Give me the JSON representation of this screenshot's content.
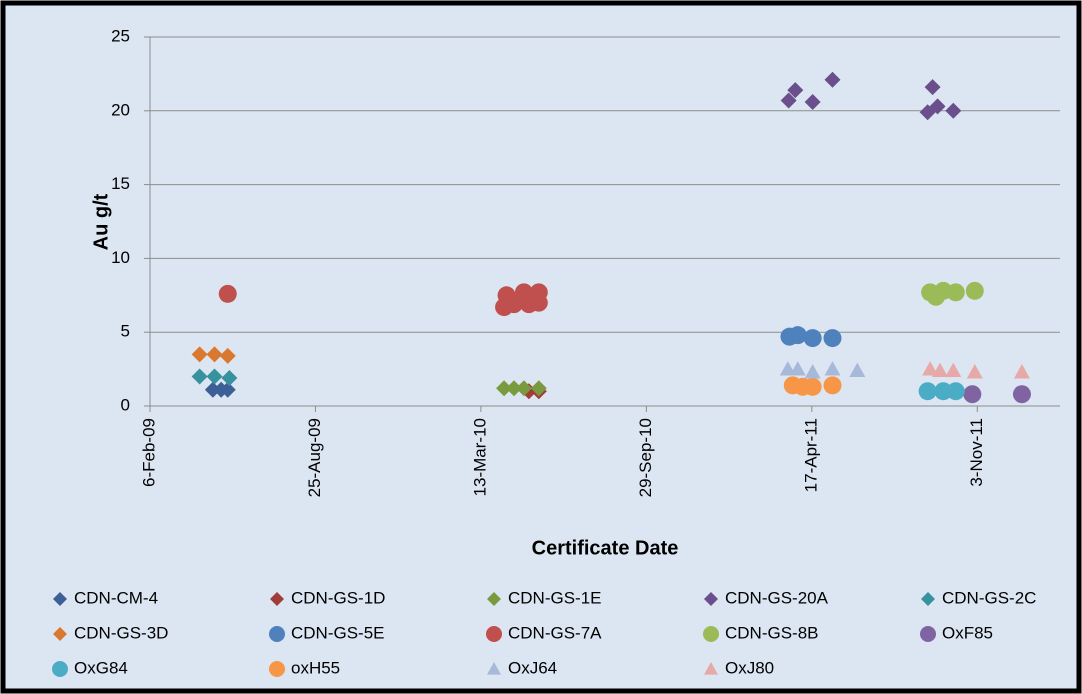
{
  "chart_data": {
    "type": "scatter",
    "xlabel": "Certificate Date",
    "ylabel": "Au g/t",
    "xlim": [
      39850,
      40950
    ],
    "xticks": [
      {
        "value": 39850,
        "label": "6-Feb-09"
      },
      {
        "value": 40050,
        "label": "25-Aug-09"
      },
      {
        "value": 40250,
        "label": "13-Mar-10"
      },
      {
        "value": 40450,
        "label": "29-Sep-10"
      },
      {
        "value": 40650,
        "label": "17-Apr-11"
      },
      {
        "value": 40850,
        "label": "3-Nov-11"
      }
    ],
    "ylim": [
      0,
      25
    ],
    "yticks": [
      0,
      5,
      10,
      15,
      20,
      25
    ],
    "grid": true,
    "series": [
      {
        "name": "CDN-CM-4",
        "color": "#3d5f97",
        "marker": "diamond",
        "x": [
          39926,
          39936,
          39944
        ],
        "values": [
          1.1,
          1.1,
          1.1
        ]
      },
      {
        "name": "CDN-GS-1D",
        "color": "#a23c39",
        "marker": "diamond",
        "x": [
          40308,
          40320
        ],
        "values": [
          1.0,
          1.0
        ]
      },
      {
        "name": "CDN-GS-1E",
        "color": "#7a9a3f",
        "marker": "diamond",
        "x": [
          40278,
          40290,
          40302,
          40320
        ],
        "values": [
          1.2,
          1.2,
          1.2,
          1.2
        ]
      },
      {
        "name": "CDN-GS-20A",
        "color": "#6a4f8c",
        "marker": "diamond",
        "x": [
          40622,
          40630,
          40651,
          40675,
          40790,
          40796,
          40802,
          40821
        ],
        "values": [
          20.7,
          21.4,
          20.6,
          22.1,
          19.9,
          21.6,
          20.3,
          20.0
        ]
      },
      {
        "name": "CDN-GS-2C",
        "color": "#37929f",
        "marker": "diamond",
        "x": [
          39910,
          39928,
          39946
        ],
        "values": [
          2.0,
          2.0,
          1.9
        ]
      },
      {
        "name": "CDN-GS-3D",
        "color": "#d9782e",
        "marker": "diamond",
        "x": [
          39910,
          39928,
          39944
        ],
        "values": [
          3.5,
          3.5,
          3.4
        ]
      },
      {
        "name": "CDN-GS-5E",
        "color": "#4f81bd",
        "marker": "circle",
        "x": [
          40623,
          40633,
          40651,
          40675
        ],
        "values": [
          4.7,
          4.8,
          4.6,
          4.6
        ]
      },
      {
        "name": "CDN-GS-7A",
        "color": "#c0504d",
        "marker": "circle",
        "x": [
          39944,
          40278,
          40281,
          40290,
          40302,
          40308,
          40320,
          40320
        ],
        "values": [
          7.6,
          6.7,
          7.5,
          6.9,
          7.7,
          6.9,
          7.7,
          7.0
        ]
      },
      {
        "name": "CDN-GS-8B",
        "color": "#9bbb59",
        "marker": "circle",
        "x": [
          40793,
          40800,
          40809,
          40824,
          40847
        ],
        "values": [
          7.7,
          7.4,
          7.8,
          7.7,
          7.8
        ]
      },
      {
        "name": "OxF85",
        "color": "#8064a2",
        "marker": "circle",
        "x": [
          40844,
          40904
        ],
        "values": [
          0.8,
          0.8
        ]
      },
      {
        "name": "OxG84",
        "color": "#4bacc6",
        "marker": "circle",
        "x": [
          40790,
          40809,
          40824
        ],
        "values": [
          1.0,
          1.0,
          1.0
        ]
      },
      {
        "name": "oxH55",
        "color": "#f79646",
        "marker": "circle",
        "x": [
          40627,
          40639,
          40651,
          40675
        ],
        "values": [
          1.4,
          1.3,
          1.3,
          1.4
        ]
      },
      {
        "name": "OxJ64",
        "color": "#a7b9d8",
        "marker": "triangle",
        "x": [
          40621,
          40633,
          40651,
          40675,
          40705
        ],
        "values": [
          2.5,
          2.5,
          2.3,
          2.5,
          2.4
        ]
      },
      {
        "name": "OxJ80",
        "color": "#e6a9a8",
        "marker": "triangle",
        "x": [
          40793,
          40805,
          40821,
          40847,
          40904
        ],
        "values": [
          2.5,
          2.4,
          2.4,
          2.3,
          2.3
        ]
      }
    ]
  }
}
